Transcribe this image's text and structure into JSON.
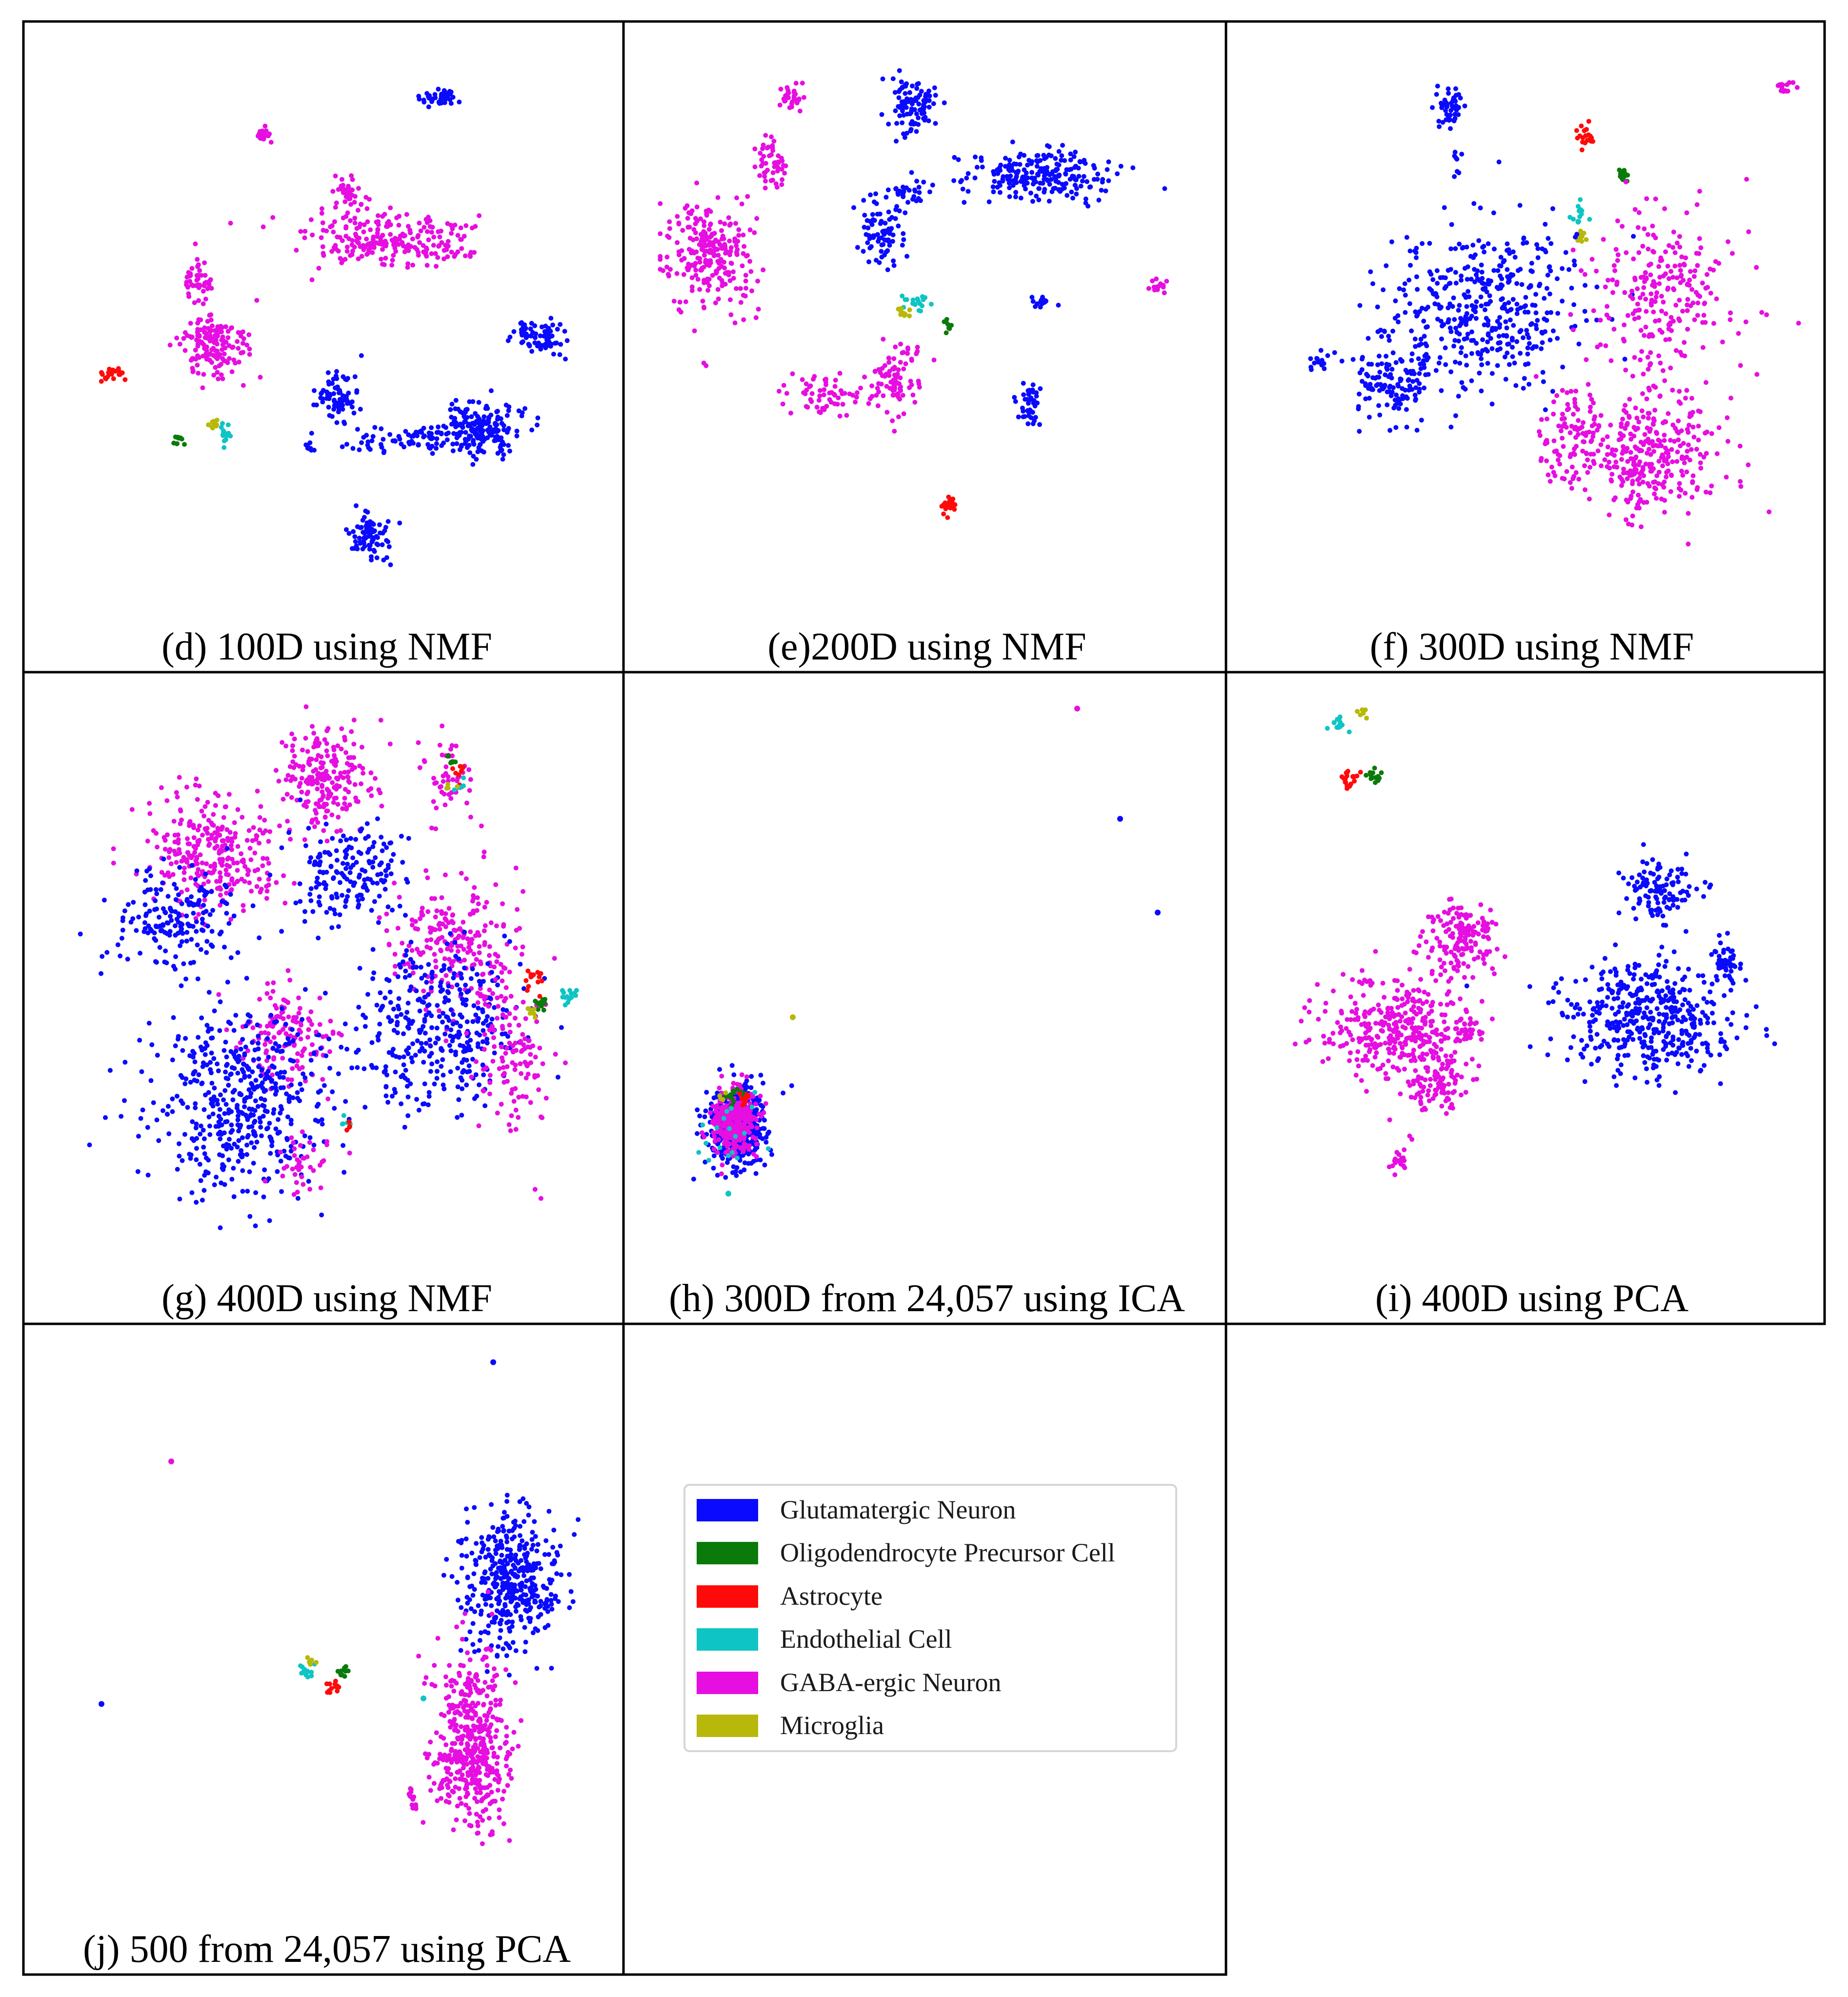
{
  "figure_kind": "t-SNE scatter grid",
  "colors": {
    "glut": "#0a0aff",
    "opc": "#0a7a0a",
    "astro": "#ff0a0a",
    "endo": "#0fc4c4",
    "gaba": "#e60ee0",
    "micro": "#b8b80a"
  },
  "chart_data": [
    {
      "type": "scatter",
      "title": "(d) 100D using NMF",
      "xlabel": "",
      "ylabel": "",
      "xlim": [
        0,
        100
      ],
      "ylim": [
        0,
        100
      ],
      "clusters": [
        {
          "class": "glut",
          "cx": 71,
          "cy": 91,
          "sx": 1.8,
          "sy": 1.0,
          "n": 45
        },
        {
          "class": "gaba",
          "cx": 38,
          "cy": 84,
          "sx": 0.8,
          "sy": 0.8,
          "n": 20
        },
        {
          "class": "gaba",
          "cx": 54,
          "cy": 73,
          "sx": 1.5,
          "sy": 2.0,
          "n": 45
        },
        {
          "class": "gaba",
          "cx": 62,
          "cy": 65,
          "sx": 7.5,
          "sy": 2.3,
          "n": 230
        },
        {
          "class": "gaba",
          "cx": 26,
          "cy": 58,
          "sx": 1.4,
          "sy": 2.0,
          "n": 45
        },
        {
          "class": "gaba",
          "cx": 29,
          "cy": 46,
          "sx": 3.2,
          "sy": 3.0,
          "n": 150
        },
        {
          "class": "glut",
          "cx": 52,
          "cy": 37,
          "sx": 2.0,
          "sy": 2.5,
          "n": 80
        },
        {
          "class": "glut",
          "cx": 78,
          "cy": 31,
          "sx": 3.6,
          "sy": 2.2,
          "n": 200
        },
        {
          "class": "glut",
          "cx": 66,
          "cy": 29,
          "sx": 5.0,
          "sy": 1.3,
          "n": 70
        },
        {
          "class": "glut",
          "cx": 90,
          "cy": 48,
          "sx": 2.2,
          "sy": 1.5,
          "n": 80
        },
        {
          "class": "glut",
          "cx": 47,
          "cy": 28,
          "sx": 0.6,
          "sy": 0.8,
          "n": 10
        },
        {
          "class": "glut",
          "cx": 58,
          "cy": 12,
          "sx": 1.8,
          "sy": 2.2,
          "n": 80
        },
        {
          "class": "astro",
          "cx": 10,
          "cy": 41,
          "sx": 1.0,
          "sy": 0.9,
          "n": 25
        },
        {
          "class": "opc",
          "cx": 22,
          "cy": 29,
          "sx": 0.6,
          "sy": 0.6,
          "n": 10
        },
        {
          "class": "micro",
          "cx": 29,
          "cy": 32,
          "sx": 0.6,
          "sy": 0.5,
          "n": 10
        },
        {
          "class": "endo",
          "cx": 31,
          "cy": 30,
          "sx": 0.6,
          "sy": 0.9,
          "n": 14
        }
      ]
    },
    {
      "type": "scatter",
      "title": "(e)200D using NMF",
      "xlabel": "",
      "ylabel": "",
      "xlim": [
        0,
        100
      ],
      "ylim": [
        0,
        100
      ],
      "clusters": [
        {
          "class": "gaba",
          "cx": 25,
          "cy": 91,
          "sx": 1.2,
          "sy": 1.3,
          "n": 30
        },
        {
          "class": "glut",
          "cx": 47,
          "cy": 90,
          "sx": 2.2,
          "sy": 2.8,
          "n": 100
        },
        {
          "class": "gaba",
          "cx": 21,
          "cy": 80,
          "sx": 1.3,
          "sy": 2.4,
          "n": 50
        },
        {
          "class": "glut",
          "cx": 71,
          "cy": 77,
          "sx": 7.0,
          "sy": 2.6,
          "n": 230
        },
        {
          "class": "glut",
          "cx": 46,
          "cy": 74,
          "sx": 1.8,
          "sy": 1.2,
          "n": 30
        },
        {
          "class": "gaba",
          "cx": 10,
          "cy": 63,
          "sx": 4.2,
          "sy": 5.0,
          "n": 250
        },
        {
          "class": "glut",
          "cx": 41,
          "cy": 67,
          "sx": 2.2,
          "sy": 2.8,
          "n": 80
        },
        {
          "class": "gaba",
          "cx": 93,
          "cy": 57,
          "sx": 0.8,
          "sy": 0.7,
          "n": 14
        },
        {
          "class": "glut",
          "cx": 72,
          "cy": 54,
          "sx": 1.0,
          "sy": 0.6,
          "n": 15
        },
        {
          "class": "gaba",
          "cx": 44,
          "cy": 40,
          "sx": 2.2,
          "sy": 3.5,
          "n": 90
        },
        {
          "class": "gaba",
          "cx": 31,
          "cy": 37,
          "sx": 3.5,
          "sy": 1.8,
          "n": 60
        },
        {
          "class": "glut",
          "cx": 69,
          "cy": 36,
          "sx": 1.2,
          "sy": 2.2,
          "n": 45
        },
        {
          "class": "endo",
          "cx": 48,
          "cy": 54,
          "sx": 1.4,
          "sy": 0.8,
          "n": 18
        },
        {
          "class": "micro",
          "cx": 46,
          "cy": 52,
          "sx": 0.6,
          "sy": 0.6,
          "n": 10
        },
        {
          "class": "opc",
          "cx": 54,
          "cy": 50,
          "sx": 0.5,
          "sy": 0.6,
          "n": 8
        },
        {
          "class": "astro",
          "cx": 54,
          "cy": 17,
          "sx": 0.9,
          "sy": 0.8,
          "n": 20
        }
      ]
    },
    {
      "type": "scatter",
      "title": "(f) 300D using NMF",
      "xlabel": "",
      "ylabel": "",
      "xlim": [
        0,
        100
      ],
      "ylim": [
        0,
        100
      ],
      "clusters": [
        {
          "class": "glut",
          "cx": 35,
          "cy": 89,
          "sx": 1.4,
          "sy": 1.8,
          "n": 50
        },
        {
          "class": "glut",
          "cx": 36,
          "cy": 79,
          "sx": 0.4,
          "sy": 2.0,
          "n": 8
        },
        {
          "class": "gaba",
          "cx": 97,
          "cy": 93,
          "sx": 0.8,
          "sy": 0.8,
          "n": 14
        },
        {
          "class": "astro",
          "cx": 60,
          "cy": 84,
          "sx": 0.9,
          "sy": 1.0,
          "n": 20
        },
        {
          "class": "opc",
          "cx": 67,
          "cy": 77,
          "sx": 0.7,
          "sy": 0.7,
          "n": 14
        },
        {
          "class": "endo",
          "cx": 59,
          "cy": 70,
          "sx": 0.8,
          "sy": 0.9,
          "n": 14
        },
        {
          "class": "micro",
          "cx": 59,
          "cy": 66,
          "sx": 0.7,
          "sy": 0.5,
          "n": 10
        },
        {
          "class": "glut",
          "cx": 41,
          "cy": 53,
          "sx": 9.5,
          "sy": 7.0,
          "n": 430
        },
        {
          "class": "glut",
          "cx": 24,
          "cy": 40,
          "sx": 3.5,
          "sy": 3.5,
          "n": 130
        },
        {
          "class": "glut",
          "cx": 10,
          "cy": 43,
          "sx": 0.9,
          "sy": 0.8,
          "n": 14
        },
        {
          "class": "gaba",
          "cx": 74,
          "cy": 55,
          "sx": 7.0,
          "sy": 7.5,
          "n": 240
        },
        {
          "class": "gaba",
          "cx": 72,
          "cy": 27,
          "sx": 6.5,
          "sy": 6.0,
          "n": 340
        },
        {
          "class": "gaba",
          "cx": 56,
          "cy": 30,
          "sx": 3.0,
          "sy": 5.0,
          "n": 80
        }
      ]
    },
    {
      "type": "scatter",
      "title": "(g) 400D using NMF",
      "xlabel": "",
      "ylabel": "",
      "xlim": [
        0,
        100
      ],
      "ylim": [
        0,
        100
      ],
      "clusters": [
        {
          "class": "gaba",
          "cx": 50,
          "cy": 85,
          "sx": 4.2,
          "sy": 4.5,
          "n": 220
        },
        {
          "class": "gaba",
          "cx": 29,
          "cy": 72,
          "sx": 6.0,
          "sy": 5.5,
          "n": 280
        },
        {
          "class": "glut",
          "cx": 22,
          "cy": 60,
          "sx": 6.0,
          "sy": 4.5,
          "n": 180
        },
        {
          "class": "glut",
          "cx": 54,
          "cy": 68,
          "sx": 5.0,
          "sy": 4.5,
          "n": 170
        },
        {
          "class": "gaba",
          "cx": 72,
          "cy": 86,
          "sx": 2.8,
          "sy": 3.5,
          "n": 50
        },
        {
          "class": "astro",
          "cx": 75,
          "cy": 87,
          "sx": 0.7,
          "sy": 0.8,
          "n": 8
        },
        {
          "class": "opc",
          "cx": 73,
          "cy": 89,
          "sx": 0.6,
          "sy": 0.6,
          "n": 6
        },
        {
          "class": "endo",
          "cx": 75,
          "cy": 84,
          "sx": 0.7,
          "sy": 0.6,
          "n": 6
        },
        {
          "class": "micro",
          "cx": 73,
          "cy": 84,
          "sx": 0.5,
          "sy": 0.5,
          "n": 4
        },
        {
          "class": "gaba",
          "cx": 74,
          "cy": 55,
          "sx": 6.0,
          "sy": 6.0,
          "n": 230
        },
        {
          "class": "glut",
          "cx": 70,
          "cy": 40,
          "sx": 8.0,
          "sy": 7.5,
          "n": 360
        },
        {
          "class": "gaba",
          "cx": 85,
          "cy": 35,
          "sx": 3.5,
          "sy": 7.0,
          "n": 120
        },
        {
          "class": "astro",
          "cx": 89,
          "cy": 49,
          "sx": 1.0,
          "sy": 1.0,
          "n": 14
        },
        {
          "class": "endo",
          "cx": 95,
          "cy": 46,
          "sx": 1.0,
          "sy": 0.8,
          "n": 14
        },
        {
          "class": "opc",
          "cx": 90,
          "cy": 45,
          "sx": 0.9,
          "sy": 0.8,
          "n": 12
        },
        {
          "class": "micro",
          "cx": 88,
          "cy": 43,
          "sx": 0.6,
          "sy": 0.6,
          "n": 8
        },
        {
          "class": "gaba",
          "cx": 42,
          "cy": 39,
          "sx": 4.5,
          "sy": 5.0,
          "n": 140
        },
        {
          "class": "glut",
          "cx": 34,
          "cy": 27,
          "sx": 8.5,
          "sy": 8.5,
          "n": 480
        },
        {
          "class": "gaba",
          "cx": 45,
          "cy": 15,
          "sx": 3.0,
          "sy": 3.0,
          "n": 40
        },
        {
          "class": "endo",
          "cx": 54,
          "cy": 23,
          "sx": 0.5,
          "sy": 0.6,
          "n": 5
        },
        {
          "class": "astro",
          "cx": 54,
          "cy": 22,
          "sx": 0.5,
          "sy": 0.5,
          "n": 4
        }
      ]
    },
    {
      "type": "scatter",
      "title": "(h) 300D from 24,057 using ICA",
      "xlabel": "",
      "ylabel": "",
      "xlim": [
        0,
        100
      ],
      "ylim": [
        0,
        100
      ],
      "clusters": [
        {
          "class": "glut",
          "cx": 14,
          "cy": 22,
          "sx": 2.8,
          "sy": 3.6,
          "n": 420
        },
        {
          "class": "gaba",
          "cx": 14,
          "cy": 23,
          "sx": 2.0,
          "sy": 2.8,
          "n": 320
        },
        {
          "class": "opc",
          "cx": 14,
          "cy": 28,
          "sx": 1.0,
          "sy": 0.8,
          "n": 12
        },
        {
          "class": "astro",
          "cx": 16,
          "cy": 27,
          "sx": 0.8,
          "sy": 0.8,
          "n": 10
        },
        {
          "class": "endo",
          "cx": 13,
          "cy": 20,
          "sx": 3.2,
          "sy": 4.0,
          "n": 18
        },
        {
          "class": "micro",
          "cx": 12,
          "cy": 27,
          "sx": 0.6,
          "sy": 0.6,
          "n": 4
        }
      ],
      "points": [
        {
          "class": "gaba",
          "x": 78,
          "y": 98
        },
        {
          "class": "glut",
          "x": 86,
          "y": 78
        },
        {
          "class": "glut",
          "x": 93,
          "y": 61
        },
        {
          "class": "micro",
          "x": 25,
          "y": 42
        },
        {
          "class": "endo",
          "x": 13,
          "y": 10
        }
      ]
    },
    {
      "type": "scatter",
      "title": "(i) 400D using PCA",
      "xlabel": "",
      "ylabel": "",
      "xlim": [
        0,
        100
      ],
      "ylim": [
        0,
        100
      ],
      "clusters": [
        {
          "class": "endo",
          "cx": 14,
          "cy": 95,
          "sx": 0.9,
          "sy": 1.0,
          "n": 14
        },
        {
          "class": "micro",
          "cx": 18,
          "cy": 97,
          "sx": 0.5,
          "sy": 0.5,
          "n": 6
        },
        {
          "class": "astro",
          "cx": 16,
          "cy": 85,
          "sx": 0.9,
          "sy": 1.0,
          "n": 20
        },
        {
          "class": "opc",
          "cx": 21,
          "cy": 86,
          "sx": 0.7,
          "sy": 0.8,
          "n": 14
        },
        {
          "class": "gaba",
          "cx": 37,
          "cy": 56,
          "sx": 3.5,
          "sy": 3.2,
          "n": 160
        },
        {
          "class": "gaba",
          "cx": 24,
          "cy": 40,
          "sx": 6.0,
          "sy": 4.5,
          "n": 330
        },
        {
          "class": "gaba",
          "cx": 32,
          "cy": 31,
          "sx": 3.0,
          "sy": 3.0,
          "n": 110
        },
        {
          "class": "gaba",
          "cx": 38,
          "cy": 40,
          "sx": 1.2,
          "sy": 2.0,
          "n": 30
        },
        {
          "class": "gaba",
          "cx": 25,
          "cy": 16,
          "sx": 0.8,
          "sy": 0.9,
          "n": 20
        },
        {
          "class": "glut",
          "cx": 74,
          "cy": 65,
          "sx": 3.5,
          "sy": 2.6,
          "n": 110
        },
        {
          "class": "glut",
          "cx": 86,
          "cy": 52,
          "sx": 1.3,
          "sy": 2.2,
          "n": 50
        },
        {
          "class": "glut",
          "cx": 72,
          "cy": 42,
          "sx": 8.0,
          "sy": 5.0,
          "n": 440
        }
      ]
    },
    {
      "type": "scatter",
      "title": "(j) 500 from 24,057 using PCA",
      "xlabel": "",
      "ylabel": "",
      "xlim": [
        0,
        100
      ],
      "ylim": [
        0,
        100
      ],
      "clusters": [
        {
          "class": "glut",
          "cx": 84,
          "cy": 58,
          "sx": 4.5,
          "sy": 6.0,
          "n": 420
        },
        {
          "class": "gaba",
          "cx": 77,
          "cy": 29,
          "sx": 3.5,
          "sy": 8.0,
          "n": 470
        },
        {
          "class": "gaba",
          "cx": 66,
          "cy": 19,
          "sx": 0.7,
          "sy": 0.9,
          "n": 14
        },
        {
          "class": "endo",
          "cx": 46,
          "cy": 42,
          "sx": 0.8,
          "sy": 0.6,
          "n": 12
        },
        {
          "class": "micro",
          "cx": 47,
          "cy": 44,
          "sx": 0.5,
          "sy": 0.5,
          "n": 5
        },
        {
          "class": "opc",
          "cx": 53,
          "cy": 42,
          "sx": 0.6,
          "sy": 0.6,
          "n": 10
        },
        {
          "class": "astro",
          "cx": 51,
          "cy": 39,
          "sx": 0.7,
          "sy": 0.7,
          "n": 12
        }
      ],
      "points": [
        {
          "class": "glut",
          "x": 81,
          "y": 98
        },
        {
          "class": "gaba",
          "x": 21,
          "y": 80
        },
        {
          "class": "glut",
          "x": 8,
          "y": 36
        },
        {
          "class": "endo",
          "x": 68,
          "y": 37
        }
      ]
    }
  ],
  "legend": {
    "items": [
      {
        "class": "glut",
        "label": "Glutamatergic Neuron"
      },
      {
        "class": "opc",
        "label": "Oligodendrocyte Precursor Cell"
      },
      {
        "class": "astro",
        "label": "Astrocyte"
      },
      {
        "class": "endo",
        "label": "Endothelial Cell"
      },
      {
        "class": "gaba",
        "label": "GABA-ergic Neuron"
      },
      {
        "class": "micro",
        "label": "Microglia"
      }
    ]
  }
}
